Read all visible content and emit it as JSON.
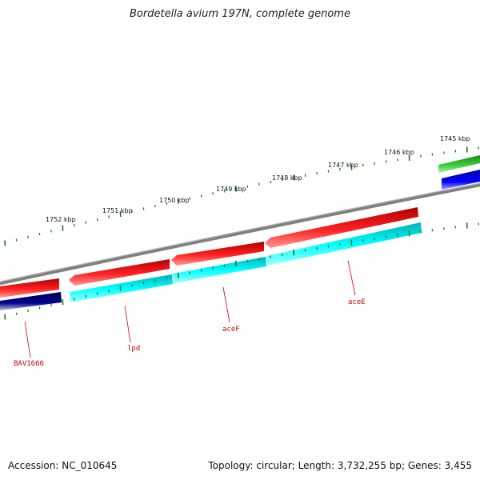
{
  "title": "Bordetella avium 197N, complete genome",
  "footer": {
    "accession": "Accession: NC_010645",
    "summary": "Topology: circular; Length: 3,732,255 bp; Genes: 3,455"
  },
  "ruler": {
    "labels": [
      "1745 kbp",
      "1746 kbp",
      "1747 kbp",
      "1748 kbp",
      "1749 kbp",
      "1750 kbp",
      "1751 kbp",
      "1752 kbp"
    ]
  },
  "genes": {
    "labels": [
      "BAV1666",
      "lpd",
      "aceF",
      "aceE"
    ]
  },
  "colors": {
    "forward_cds": "#e00000",
    "reverse_cds": "#000080",
    "orf_red": "#e00000",
    "orf_cyan": "#00e8f0",
    "rna_green": "#2eb82e",
    "rna_blue": "#0000ee",
    "backbone": "#808080",
    "ticks": "#1a7a1a",
    "label_red": "#cc0000"
  }
}
